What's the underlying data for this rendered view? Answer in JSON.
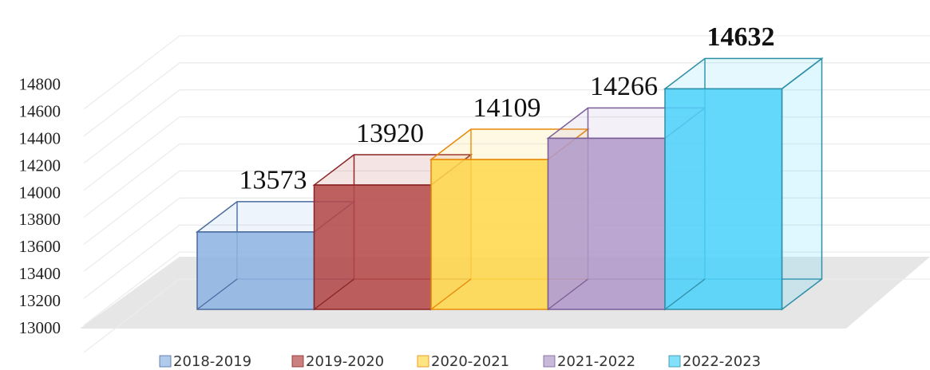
{
  "chart_data": {
    "type": "bar3d",
    "categories": [
      "2018-2019",
      "2019-2020",
      "2020-2021",
      "2021-2022",
      "2022-2023"
    ],
    "values": [
      13573,
      13920,
      14109,
      14266,
      14632
    ],
    "value_label_bold": [
      false,
      false,
      false,
      false,
      true
    ],
    "colors": [
      "#8eb4e3",
      "#b54a4a",
      "#ffd84d",
      "#b09acb",
      "#4fd3f9"
    ],
    "edge_colors": [
      "#4a6aa0",
      "#8c2424",
      "#e8880a",
      "#7a5c98",
      "#2f8fa6"
    ],
    "ylim": [
      13000,
      15200
    ],
    "yticks": [
      13000,
      13200,
      13400,
      13600,
      13800,
      14000,
      14200,
      14400,
      14600,
      14800
    ],
    "grid": true
  }
}
